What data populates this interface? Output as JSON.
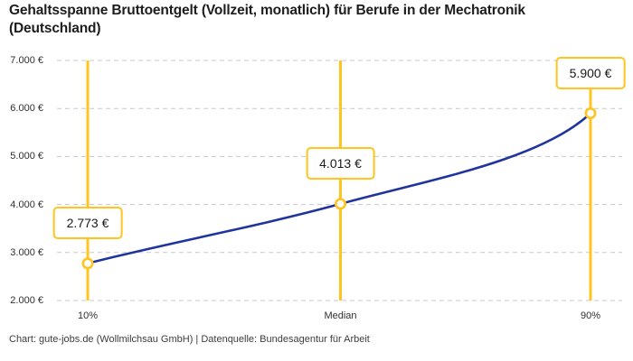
{
  "chart_data": {
    "type": "line",
    "title": "Gehaltsspanne Bruttoentgelt (Vollzeit, monatlich) für Berufe in der Mechatronik (Deutschland)",
    "categories": [
      "10%",
      "Median",
      "90%"
    ],
    "values": [
      2773,
      4013,
      5900
    ],
    "value_labels": [
      "2.773 €",
      "4.013 €",
      "5.900 €"
    ],
    "xlabel": "",
    "ylabel": "",
    "ylim": [
      2000,
      7000
    ],
    "y_ticks": [
      {
        "value": 7000,
        "label": "7.000 €"
      },
      {
        "value": 6000,
        "label": "6.000 €"
      },
      {
        "value": 5000,
        "label": "5.000 €"
      },
      {
        "value": 4000,
        "label": "4.000 €"
      },
      {
        "value": 3000,
        "label": "3.000 €"
      },
      {
        "value": 2000,
        "label": "2.000 €"
      }
    ],
    "grid": "horizontal-dashed",
    "legend_position": "none",
    "marker": "open-circle"
  },
  "attribution": "Chart: gute-jobs.de (Wollmilchsau GmbH) | Datenquelle: Bundesagentur für Arbeit",
  "colors": {
    "accent_yellow": "#FFC41E",
    "line_blue": "#20349E",
    "grid": "#C8C8C8",
    "title_text": "#1D1D1D",
    "tick_text": "#2F2F2F",
    "footer_text": "#3D3D3D",
    "background": "#FFFFFF"
  }
}
